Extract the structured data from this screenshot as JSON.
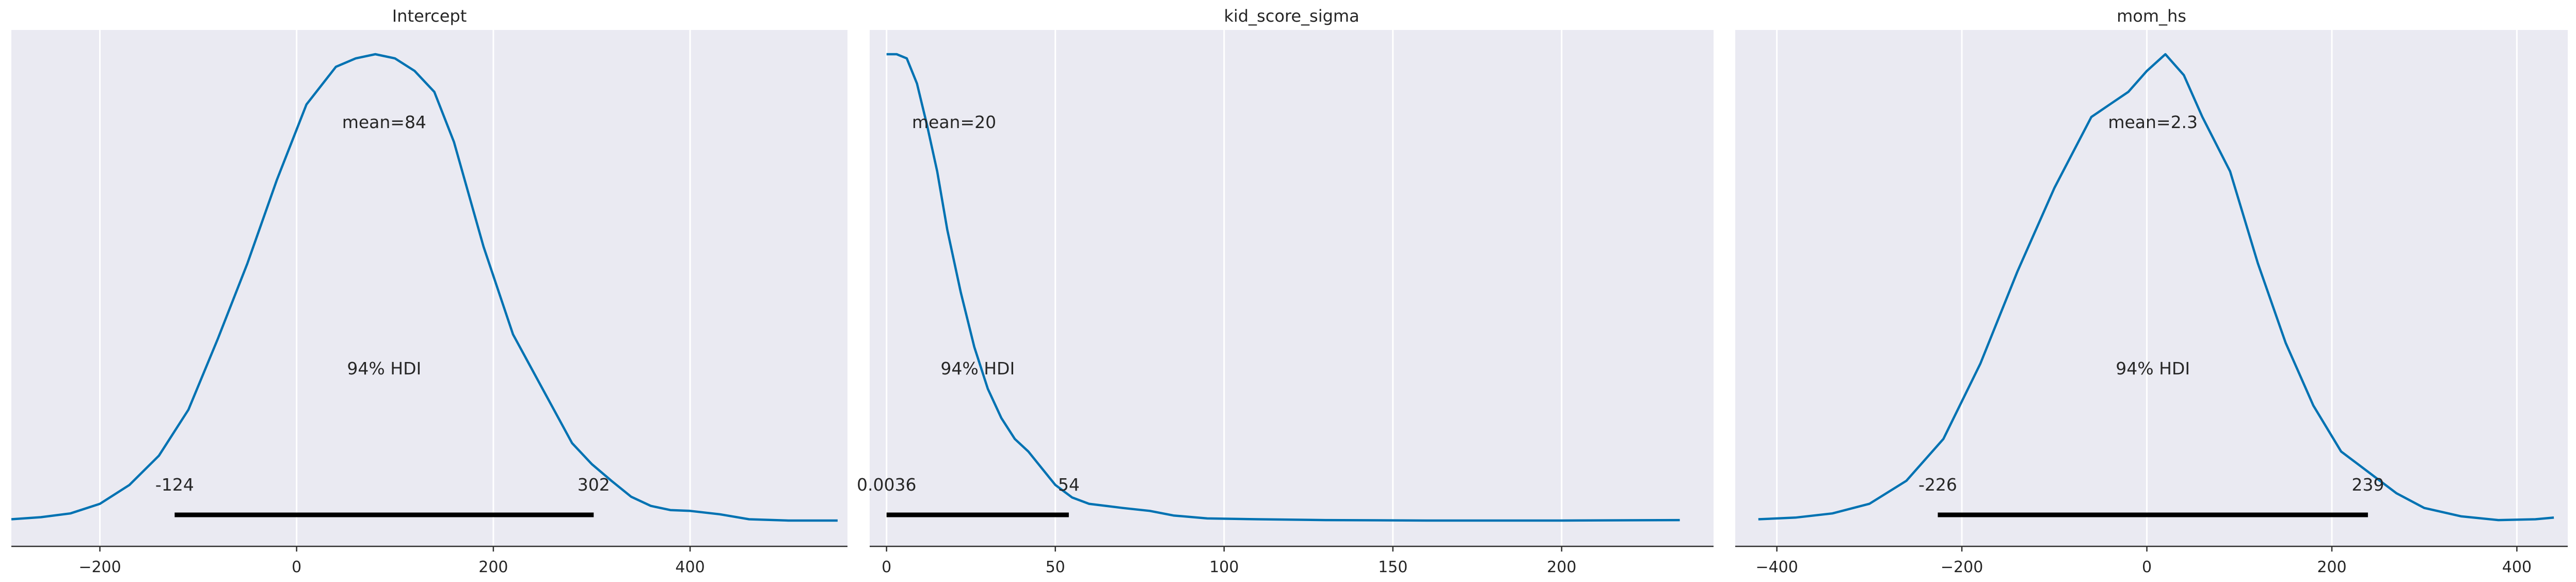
{
  "chart_data": [
    {
      "type": "line",
      "title": "Intercept",
      "xlim": [
        -290,
        560
      ],
      "ylim": [
        0,
        1.1
      ],
      "xticks": [
        -200,
        0,
        200,
        400
      ],
      "tick_labels": [
        "−200",
        "0",
        "200",
        "400"
      ],
      "grid": true,
      "color": "#0072b2",
      "mean_label": "mean=84",
      "hdi_label": "94% HDI",
      "hdi_low": -124,
      "hdi_high": 302,
      "hdi_low_label": "-124",
      "hdi_high_label": "302",
      "x": [
        -290,
        -260,
        -230,
        -200,
        -170,
        -140,
        -110,
        -80,
        -50,
        -20,
        10,
        40,
        60,
        80,
        100,
        120,
        140,
        160,
        190,
        220,
        250,
        280,
        300,
        320,
        340,
        360,
        380,
        400,
        430,
        460,
        500,
        550
      ],
      "y": [
        0.008,
        0.013,
        0.022,
        0.045,
        0.09,
        0.16,
        0.27,
        0.44,
        0.62,
        0.82,
        1.0,
        1.09,
        1.11,
        1.12,
        1.11,
        1.08,
        1.03,
        0.91,
        0.66,
        0.45,
        0.32,
        0.19,
        0.14,
        0.1,
        0.062,
        0.04,
        0.03,
        0.028,
        0.02,
        0.008,
        0.005,
        0.005
      ]
    },
    {
      "type": "line",
      "title": "kid_score_sigma",
      "xlim": [
        -5,
        245
      ],
      "ylim": [
        0,
        1.1
      ],
      "xticks": [
        0,
        50,
        100,
        150,
        200
      ],
      "tick_labels": [
        "0",
        "50",
        "100",
        "150",
        "200"
      ],
      "grid": true,
      "color": "#0072b2",
      "mean_label": "mean=20",
      "hdi_label": "94% HDI",
      "hdi_low": 0.0036,
      "hdi_high": 54,
      "hdi_low_label": "0.0036",
      "hdi_high_label": "54",
      "x": [
        0,
        3,
        6,
        9,
        12,
        15,
        18,
        22,
        26,
        30,
        34,
        38,
        42,
        46,
        50,
        55,
        60,
        65,
        70,
        78,
        85,
        95,
        110,
        130,
        160,
        200,
        235
      ],
      "y": [
        1.12,
        1.12,
        1.11,
        1.05,
        0.95,
        0.84,
        0.7,
        0.55,
        0.42,
        0.32,
        0.25,
        0.2,
        0.17,
        0.13,
        0.09,
        0.06,
        0.045,
        0.04,
        0.035,
        0.028,
        0.017,
        0.01,
        0.008,
        0.006,
        0.005,
        0.005,
        0.006
      ]
    },
    {
      "type": "line",
      "title": "mom_hs",
      "xlim": [
        -445,
        455
      ],
      "ylim": [
        0,
        1.1
      ],
      "xticks": [
        -400,
        -200,
        0,
        200,
        400
      ],
      "tick_labels": [
        "−400",
        "−200",
        "0",
        "200",
        "400"
      ],
      "grid": true,
      "color": "#0072b2",
      "mean_label": "mean=2.3",
      "hdi_label": "94% HDI",
      "hdi_low": -226,
      "hdi_high": 239,
      "hdi_low_label": "-226",
      "hdi_high_label": "239",
      "x": [
        -420,
        -380,
        -340,
        -300,
        -260,
        -220,
        -180,
        -140,
        -100,
        -60,
        -40,
        -20,
        0,
        20,
        40,
        60,
        90,
        120,
        150,
        180,
        210,
        240,
        270,
        300,
        340,
        380,
        420,
        440
      ],
      "y": [
        0.008,
        0.012,
        0.022,
        0.045,
        0.1,
        0.2,
        0.38,
        0.6,
        0.8,
        0.97,
        1.0,
        1.03,
        1.08,
        1.12,
        1.07,
        0.97,
        0.84,
        0.62,
        0.43,
        0.28,
        0.17,
        0.12,
        0.07,
        0.035,
        0.015,
        0.006,
        0.008,
        0.012
      ]
    }
  ]
}
